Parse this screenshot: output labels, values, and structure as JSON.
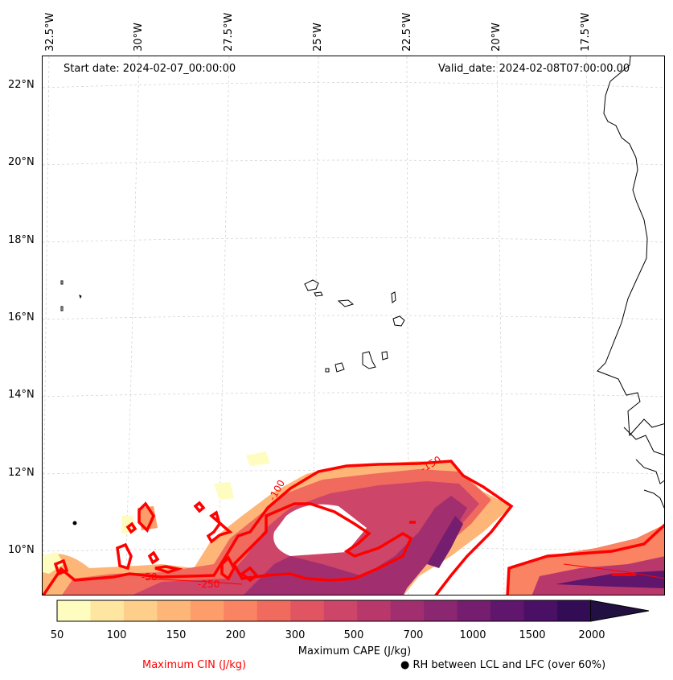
{
  "map": {
    "start_date": "Start date: 2024-02-07_00:00:00",
    "valid_date": "Valid_date: 2024-02-08T07:00:00.00",
    "longitude_labels": [
      "32.5°W",
      "30°W",
      "27.5°W",
      "25°W",
      "22.5°W",
      "20°W",
      "17.5°W"
    ],
    "latitude_labels": [
      "22°N",
      "20°N",
      "18°N",
      "16°N",
      "14°N",
      "12°N",
      "10°N"
    ],
    "cin_contour_labels": [
      "-50",
      "-100",
      "-150",
      "-250"
    ]
  },
  "colorbar": {
    "title": "Maximum CAPE (J/kg)",
    "ticks": [
      "50",
      "100",
      "150",
      "200",
      "300",
      "500",
      "700",
      "1000",
      "1500",
      "2000"
    ],
    "colors": [
      "#fefdbf",
      "#fee6a0",
      "#fecf8a",
      "#fdb678",
      "#fc9d6a",
      "#f98362",
      "#f06a5e",
      "#e15562",
      "#cd4568",
      "#b8386c",
      "#a12f6f",
      "#8b2670",
      "#751e6f",
      "#5f166c",
      "#4a1065",
      "#330c56",
      "#211041"
    ]
  },
  "legend": {
    "cin_label": "Maximum CIN (J/kg)",
    "cin_color": "#ff0000",
    "rh_label": "RH between LCL and LFC (over 60%)"
  }
}
